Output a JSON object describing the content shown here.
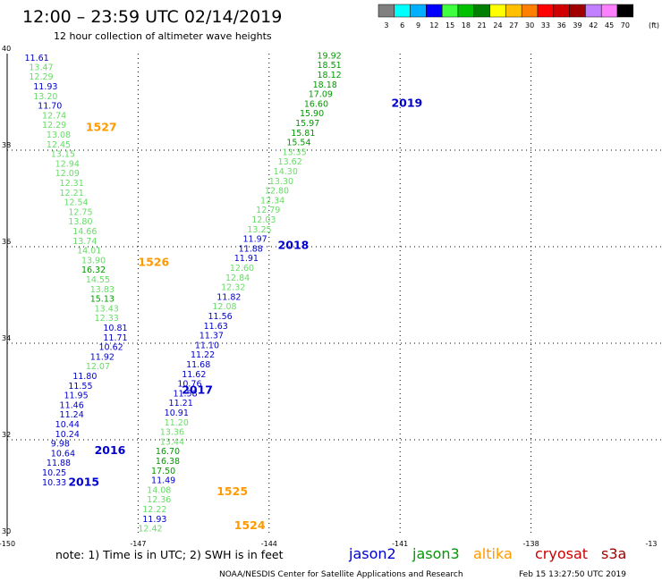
{
  "header": {
    "title": "12:00 – 23:59 UTC 02/14/2019",
    "subtitle": "12 hour collection of altimeter wave heights"
  },
  "colorbar": {
    "labels": [
      "3",
      "6",
      "9",
      "12",
      "15",
      "18",
      "21",
      "24",
      "27",
      "30",
      "33",
      "36",
      "39",
      "42",
      "45",
      "70"
    ],
    "unit": "(ft)",
    "colors": [
      "#808080",
      "#00ffff",
      "#00b0ff",
      "#0000ff",
      "#40ff40",
      "#00c000",
      "#008000",
      "#ffff00",
      "#ffc000",
      "#ff8000",
      "#ff0000",
      "#d00000",
      "#a00000",
      "#c080ff",
      "#ff80ff",
      "#000000"
    ]
  },
  "footer": {
    "note": "note:  1) Time is in UTC;  2) SWH is in feet",
    "credit": "NOAA/NESDIS Center for Satellite Applications and Research",
    "timestamp": "Feb 15 13:27:50 UTC 2019"
  },
  "legend": [
    {
      "name": "jason2",
      "color": "#0000cc"
    },
    {
      "name": "jason3",
      "color": "#009900"
    },
    {
      "name": "altika",
      "color": "#ff9900"
    },
    {
      "name": "cryosat",
      "color": "#cc0000"
    },
    {
      "name": "s3a",
      "color": "#990000"
    }
  ],
  "chart_data": {
    "type": "scatter",
    "x_ticks": [
      "-150",
      "-147",
      "-144",
      "-141",
      "-138",
      "-13"
    ],
    "y_ticks": [
      "40",
      "38",
      "36",
      "34",
      "32",
      "30"
    ],
    "xlim": [
      -150,
      -135
    ],
    "ylim": [
      30,
      40
    ],
    "grid": true,
    "series": [
      {
        "name": "jason2",
        "color": "#0000cc",
        "points": [
          {
            "lon": -149.6,
            "lat": 39.85,
            "v": "11.61",
            "c": "#0000cc"
          },
          {
            "lon": -149.5,
            "lat": 39.66,
            "v": "13.47",
            "c": "#66dd66"
          },
          {
            "lon": -149.5,
            "lat": 39.46,
            "v": "12.29",
            "c": "#66dd66"
          },
          {
            "lon": -149.4,
            "lat": 39.26,
            "v": "11.93",
            "c": "#0000cc"
          },
          {
            "lon": -149.4,
            "lat": 39.06,
            "v": "13.20",
            "c": "#66dd66"
          },
          {
            "lon": -149.3,
            "lat": 38.86,
            "v": "11.70",
            "c": "#0000cc"
          },
          {
            "lon": -149.2,
            "lat": 38.66,
            "v": "12.74",
            "c": "#66dd66"
          },
          {
            "lon": -149.2,
            "lat": 38.46,
            "v": "12.29",
            "c": "#66dd66"
          },
          {
            "lon": -149.1,
            "lat": 38.26,
            "v": "13.08",
            "c": "#66dd66"
          },
          {
            "lon": -149.1,
            "lat": 38.06,
            "v": "12.45",
            "c": "#66dd66"
          },
          {
            "lon": -149.0,
            "lat": 37.86,
            "v": "13.15",
            "c": "#66dd66"
          },
          {
            "lon": -148.9,
            "lat": 37.66,
            "v": "12.94",
            "c": "#66dd66"
          },
          {
            "lon": -148.9,
            "lat": 37.46,
            "v": "12.09",
            "c": "#66dd66"
          },
          {
            "lon": -148.8,
            "lat": 37.26,
            "v": "12.31",
            "c": "#66dd66"
          },
          {
            "lon": -148.8,
            "lat": 37.06,
            "v": "12.21",
            "c": "#66dd66"
          },
          {
            "lon": -148.7,
            "lat": 36.86,
            "v": "12.54",
            "c": "#66dd66"
          },
          {
            "lon": -148.6,
            "lat": 36.66,
            "v": "12.75",
            "c": "#66dd66"
          },
          {
            "lon": -148.6,
            "lat": 36.46,
            "v": "13.80",
            "c": "#66dd66"
          },
          {
            "lon": -148.5,
            "lat": 36.26,
            "v": "14.66",
            "c": "#66dd66"
          },
          {
            "lon": -148.5,
            "lat": 36.06,
            "v": "13.74",
            "c": "#66dd66"
          },
          {
            "lon": -148.4,
            "lat": 35.86,
            "v": "14.01",
            "c": "#66dd66"
          },
          {
            "lon": -148.3,
            "lat": 35.66,
            "v": "13.90",
            "c": "#66dd66"
          },
          {
            "lon": -148.3,
            "lat": 35.46,
            "v": "16.32",
            "c": "#009900"
          },
          {
            "lon": -148.2,
            "lat": 35.26,
            "v": "14.55",
            "c": "#66dd66"
          },
          {
            "lon": -148.1,
            "lat": 35.06,
            "v": "13.83",
            "c": "#66dd66"
          },
          {
            "lon": -148.1,
            "lat": 34.86,
            "v": "15.13",
            "c": "#009900"
          },
          {
            "lon": -148.0,
            "lat": 34.66,
            "v": "13.43",
            "c": "#66dd66"
          },
          {
            "lon": -148.0,
            "lat": 34.46,
            "v": "12.33",
            "c": "#66dd66"
          },
          {
            "lon": -147.8,
            "lat": 34.26,
            "v": "10.81",
            "c": "#0000cc"
          },
          {
            "lon": -147.8,
            "lat": 34.06,
            "v": "11.71",
            "c": "#0000cc"
          },
          {
            "lon": -147.9,
            "lat": 33.86,
            "v": "10.62",
            "c": "#0000cc"
          },
          {
            "lon": -148.1,
            "lat": 33.66,
            "v": "11.92",
            "c": "#0000cc"
          },
          {
            "lon": -148.2,
            "lat": 33.46,
            "v": "12.07",
            "c": "#66dd66"
          },
          {
            "lon": -148.5,
            "lat": 33.26,
            "v": "11.80",
            "c": "#0000cc"
          },
          {
            "lon": -148.6,
            "lat": 33.06,
            "v": "11.55",
            "c": "#0000cc"
          },
          {
            "lon": -148.7,
            "lat": 32.86,
            "v": "11.95",
            "c": "#0000cc"
          },
          {
            "lon": -148.8,
            "lat": 32.66,
            "v": "11.46",
            "c": "#0000cc"
          },
          {
            "lon": -148.8,
            "lat": 32.46,
            "v": "11.24",
            "c": "#0000cc"
          },
          {
            "lon": -148.9,
            "lat": 32.26,
            "v": "10.44",
            "c": "#0000cc"
          },
          {
            "lon": -148.9,
            "lat": 32.06,
            "v": "10.24",
            "c": "#0000cc"
          },
          {
            "lon": -149.0,
            "lat": 31.86,
            "v": "9.98",
            "c": "#0000cc"
          },
          {
            "lon": -149.0,
            "lat": 31.66,
            "v": "10.64",
            "c": "#0000cc"
          },
          {
            "lon": -149.1,
            "lat": 31.46,
            "v": "11.88",
            "c": "#0000cc"
          },
          {
            "lon": -149.2,
            "lat": 31.26,
            "v": "10.25",
            "c": "#0000cc"
          },
          {
            "lon": -149.2,
            "lat": 31.06,
            "v": "10.33",
            "c": "#0000cc"
          }
        ]
      },
      {
        "name": "jason3",
        "color": "#009900",
        "points": [
          {
            "lon": -142.9,
            "lat": 39.9,
            "v": "19.92",
            "c": "#009900"
          },
          {
            "lon": -142.9,
            "lat": 39.7,
            "v": "18.51",
            "c": "#009900"
          },
          {
            "lon": -142.9,
            "lat": 39.5,
            "v": "18.12",
            "c": "#009900"
          },
          {
            "lon": -143.0,
            "lat": 39.3,
            "v": "18.18",
            "c": "#009900"
          },
          {
            "lon": -143.1,
            "lat": 39.1,
            "v": "17.09",
            "c": "#009900"
          },
          {
            "lon": -143.2,
            "lat": 38.9,
            "v": "16.60",
            "c": "#009900"
          },
          {
            "lon": -143.3,
            "lat": 38.7,
            "v": "15.90",
            "c": "#009900"
          },
          {
            "lon": -143.4,
            "lat": 38.5,
            "v": "15.97",
            "c": "#009900"
          },
          {
            "lon": -143.5,
            "lat": 38.3,
            "v": "15.81",
            "c": "#009900"
          },
          {
            "lon": -143.6,
            "lat": 38.1,
            "v": "15.54",
            "c": "#009900"
          },
          {
            "lon": -143.7,
            "lat": 37.9,
            "v": "13.35",
            "c": "#66dd66"
          },
          {
            "lon": -143.8,
            "lat": 37.7,
            "v": "13.62",
            "c": "#66dd66"
          },
          {
            "lon": -143.9,
            "lat": 37.5,
            "v": "14.30",
            "c": "#66dd66"
          },
          {
            "lon": -144.0,
            "lat": 37.3,
            "v": "13.30",
            "c": "#66dd66"
          },
          {
            "lon": -144.1,
            "lat": 37.1,
            "v": "12.80",
            "c": "#66dd66"
          },
          {
            "lon": -144.2,
            "lat": 36.9,
            "v": "12.34",
            "c": "#66dd66"
          },
          {
            "lon": -144.3,
            "lat": 36.7,
            "v": "12.79",
            "c": "#66dd66"
          },
          {
            "lon": -144.4,
            "lat": 36.5,
            "v": "12.03",
            "c": "#66dd66"
          },
          {
            "lon": -144.5,
            "lat": 36.3,
            "v": "13.25",
            "c": "#66dd66"
          },
          {
            "lon": -144.6,
            "lat": 36.1,
            "v": "11.97",
            "c": "#0000cc"
          },
          {
            "lon": -144.7,
            "lat": 35.9,
            "v": "11.88",
            "c": "#0000cc"
          },
          {
            "lon": -144.8,
            "lat": 35.7,
            "v": "11.91",
            "c": "#0000cc"
          },
          {
            "lon": -144.9,
            "lat": 35.5,
            "v": "12.60",
            "c": "#66dd66"
          },
          {
            "lon": -145.0,
            "lat": 35.3,
            "v": "12.84",
            "c": "#66dd66"
          },
          {
            "lon": -145.1,
            "lat": 35.1,
            "v": "12.32",
            "c": "#66dd66"
          },
          {
            "lon": -145.2,
            "lat": 34.9,
            "v": "11.82",
            "c": "#0000cc"
          },
          {
            "lon": -145.3,
            "lat": 34.7,
            "v": "12.08",
            "c": "#66dd66"
          },
          {
            "lon": -145.4,
            "lat": 34.5,
            "v": "11.56",
            "c": "#0000cc"
          },
          {
            "lon": -145.5,
            "lat": 34.3,
            "v": "11.63",
            "c": "#0000cc"
          },
          {
            "lon": -145.6,
            "lat": 34.1,
            "v": "11.37",
            "c": "#0000cc"
          },
          {
            "lon": -145.7,
            "lat": 33.9,
            "v": "11.10",
            "c": "#0000cc"
          },
          {
            "lon": -145.8,
            "lat": 33.7,
            "v": "11.22",
            "c": "#0000cc"
          },
          {
            "lon": -145.9,
            "lat": 33.5,
            "v": "11.68",
            "c": "#0000cc"
          },
          {
            "lon": -146.0,
            "lat": 33.3,
            "v": "11.62",
            "c": "#0000cc"
          },
          {
            "lon": -146.1,
            "lat": 33.1,
            "v": "10.76",
            "c": "#0000cc"
          },
          {
            "lon": -146.2,
            "lat": 32.9,
            "v": "11.58",
            "c": "#0000cc"
          },
          {
            "lon": -146.3,
            "lat": 32.7,
            "v": "11.21",
            "c": "#0000cc"
          },
          {
            "lon": -146.4,
            "lat": 32.5,
            "v": "10.91",
            "c": "#0000cc"
          },
          {
            "lon": -146.4,
            "lat": 32.3,
            "v": "11.20",
            "c": "#66dd66"
          },
          {
            "lon": -146.5,
            "lat": 32.1,
            "v": "13.36",
            "c": "#66dd66"
          },
          {
            "lon": -146.5,
            "lat": 31.9,
            "v": "13.44",
            "c": "#66dd66"
          },
          {
            "lon": -146.6,
            "lat": 31.7,
            "v": "16.70",
            "c": "#009900"
          },
          {
            "lon": -146.6,
            "lat": 31.5,
            "v": "16.38",
            "c": "#009900"
          },
          {
            "lon": -146.7,
            "lat": 31.3,
            "v": "17.50",
            "c": "#009900"
          },
          {
            "lon": -146.7,
            "lat": 31.1,
            "v": "11.49",
            "c": "#0000cc"
          },
          {
            "lon": -146.8,
            "lat": 30.9,
            "v": "14.08",
            "c": "#66dd66"
          },
          {
            "lon": -146.8,
            "lat": 30.7,
            "v": "12.36",
            "c": "#66dd66"
          },
          {
            "lon": -146.9,
            "lat": 30.5,
            "v": "12.22",
            "c": "#66dd66"
          },
          {
            "lon": -146.9,
            "lat": 30.3,
            "v": "11.93",
            "c": "#0000cc"
          },
          {
            "lon": -147.0,
            "lat": 30.1,
            "v": "12.42",
            "c": "#66dd66"
          }
        ]
      }
    ],
    "annotations": [
      {
        "text": "2019",
        "color": "#0000cc",
        "lon": -141.2,
        "lat": 38.9
      },
      {
        "text": "2018",
        "color": "#0000cc",
        "lon": -143.8,
        "lat": 35.95
      },
      {
        "text": "2017",
        "color": "#0000cc",
        "lon": -146.0,
        "lat": 32.95
      },
      {
        "text": "2016",
        "color": "#0000cc",
        "lon": -148.0,
        "lat": 31.7
      },
      {
        "text": "2015",
        "color": "#0000cc",
        "lon": -148.6,
        "lat": 31.05
      },
      {
        "text": "1527",
        "color": "#ff9900",
        "lon": -148.2,
        "lat": 38.4
      },
      {
        "text": "1526",
        "color": "#ff9900",
        "lon": -147.0,
        "lat": 35.6
      },
      {
        "text": "1525",
        "color": "#ff9900",
        "lon": -145.2,
        "lat": 30.85
      },
      {
        "text": "1524",
        "color": "#ff9900",
        "lon": -144.8,
        "lat": 30.15
      }
    ]
  }
}
